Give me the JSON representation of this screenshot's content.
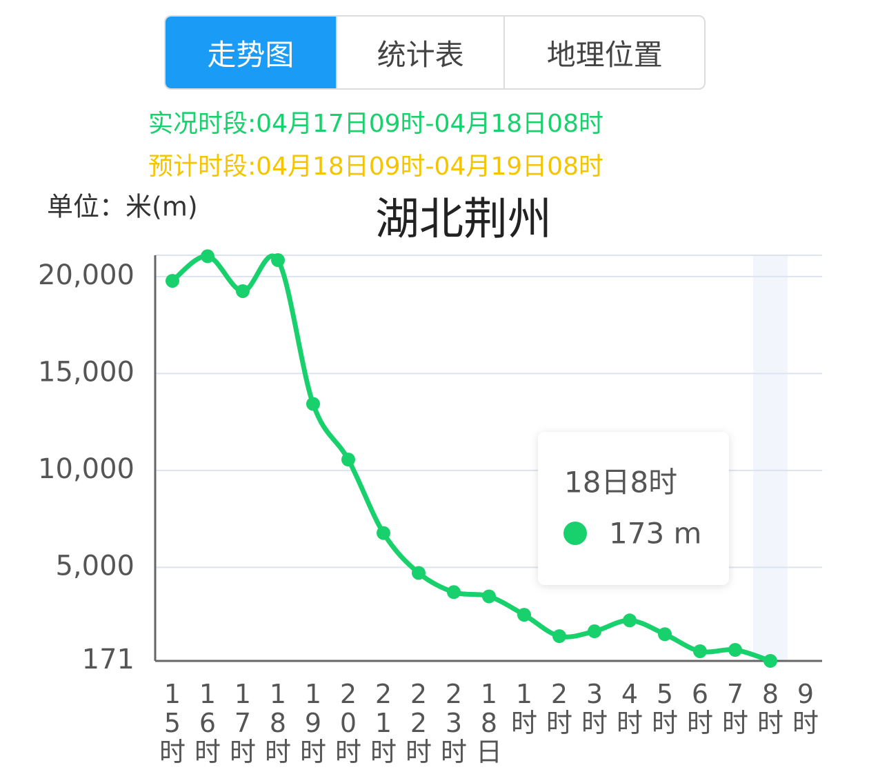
{
  "tabs": [
    "走势图",
    "统计表",
    "地理位置"
  ],
  "chart_data": {
    "type": "line",
    "title": "湖北荆州",
    "unit": "单位：米(m)",
    "legend": [
      {
        "name": "实况时段:04月17日09时-04月18日08时",
        "color": "#18d06c"
      },
      {
        "name": "预计时段:04月18日09时-04月19日08时",
        "color": "#f5c400"
      }
    ],
    "categories": [
      "15时",
      "16时",
      "17时",
      "18时",
      "19时",
      "20时",
      "21时",
      "22时",
      "23时",
      "18日",
      "1时",
      "2时",
      "3时",
      "4时",
      "5时",
      "6时",
      "7时",
      "8时",
      "9时"
    ],
    "series": [
      {
        "name": "实况时段:04月17日09时-04月18日08时",
        "color": "#18d06c",
        "values": [
          19780,
          21050,
          19250,
          20850,
          13430,
          10560,
          6770,
          4710,
          3720,
          3500,
          2550,
          1450,
          1700,
          2260,
          1550,
          670,
          740,
          173,
          null
        ]
      }
    ],
    "ylim": [
      171,
      21100
    ],
    "yticks": [
      171,
      {
        "value": 5000,
        "label": "5,000"
      },
      {
        "value": 10000,
        "label": "10,000"
      },
      {
        "value": 15000,
        "label": "15,000"
      },
      {
        "value": 20000,
        "label": "20,000"
      }
    ],
    "grid": true,
    "highlight_index": 17,
    "tooltip": {
      "title": "18日8时",
      "text": "173 m"
    }
  }
}
